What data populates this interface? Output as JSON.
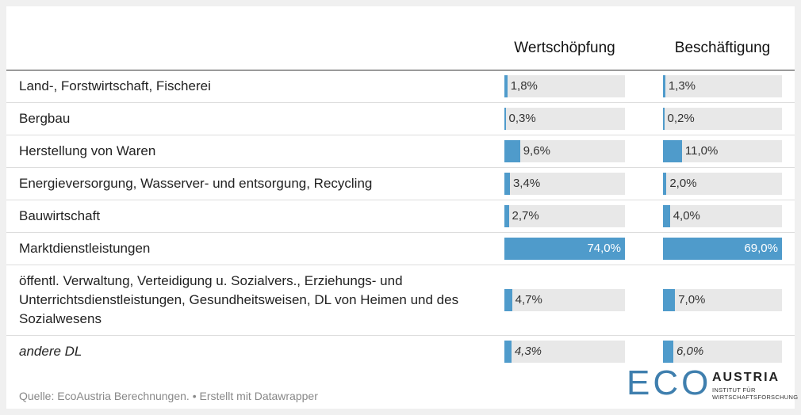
{
  "chart_data": {
    "type": "bar-table",
    "categories": [
      "Land-, Forstwirtschaft, Fischerei",
      "Bergbau",
      "Herstellung von Waren",
      "Energieversorgung, Wasserver- und entsorgung, Recycling",
      "Bauwirtschaft",
      "Marktdienstleistungen",
      "öffentl. Verwaltung, Verteidigung u. Sozialvers., Erziehungs- und Unterrichtsdienstleistungen, Gesundheitsweisen, DL von Heimen und des Sozialwesens",
      "andere DL"
    ],
    "italic_rows": [
      7
    ],
    "series": [
      {
        "name": "Wertschöpfung",
        "color": "#4f9bcb",
        "xlim": [
          0,
          74
        ],
        "values": [
          1.8,
          0.3,
          9.6,
          3.4,
          2.7,
          74.0,
          4.7,
          4.3
        ],
        "value_labels": [
          "1,8%",
          "0,3%",
          "9,6%",
          "3,4%",
          "2,7%",
          "74,0%",
          "4,7%",
          "4,3%"
        ]
      },
      {
        "name": "Beschäftigung",
        "color": "#4f9bcb",
        "xlim": [
          0,
          69
        ],
        "values": [
          1.3,
          0.2,
          11.0,
          2.0,
          4.0,
          69.0,
          7.0,
          6.0
        ],
        "value_labels": [
          "1,3%",
          "0,2%",
          "11,0%",
          "2,0%",
          "4,0%",
          "69,0%",
          "7,0%",
          "6,0%"
        ]
      }
    ]
  },
  "footer": {
    "source": "Quelle: EcoAustria Berechnungen. • Erstellt mit Datawrapper",
    "logo": {
      "mark": "ECO",
      "name": "AUSTRIA",
      "line1": "INSTITUT FÜR",
      "line2": "WIRTSCHAFTSFORSCHUNG"
    }
  }
}
